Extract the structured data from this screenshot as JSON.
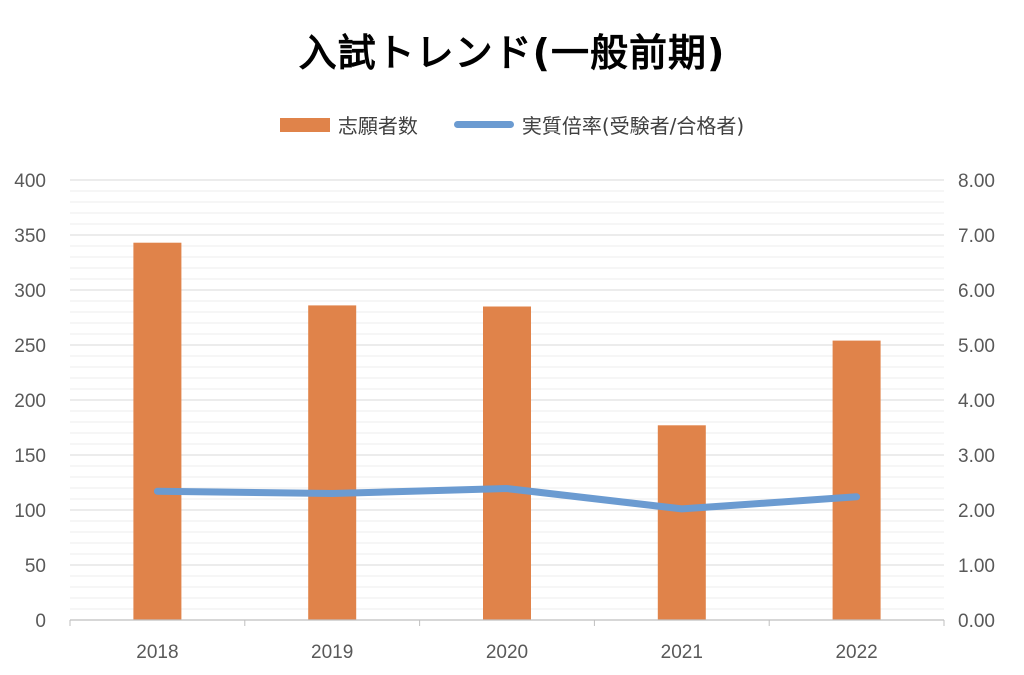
{
  "chart_data": {
    "type": "bar",
    "title": "入試トレンド(一般前期)",
    "categories": [
      "2018",
      "2019",
      "2020",
      "2021",
      "2022"
    ],
    "series": [
      {
        "name": "志願者数",
        "type": "bar",
        "axis": "left",
        "values": [
          343,
          286,
          285,
          177,
          254
        ],
        "color": "#E0834A"
      },
      {
        "name": "実質倍率(受験者/合格者)",
        "type": "line",
        "axis": "right",
        "values": [
          2.34,
          2.3,
          2.39,
          2.02,
          2.24
        ],
        "color": "#6B9BD1"
      }
    ],
    "y_left": {
      "min": 0,
      "max": 400,
      "step": 50,
      "minor_step": 10,
      "tick_labels": [
        "0",
        "50",
        "100",
        "150",
        "200",
        "250",
        "300",
        "350",
        "400"
      ]
    },
    "y_right": {
      "min": 0,
      "max": 8,
      "step": 1,
      "tick_labels": [
        "0.00",
        "1.00",
        "2.00",
        "3.00",
        "4.00",
        "5.00",
        "6.00",
        "7.00",
        "8.00"
      ]
    },
    "grid": true,
    "legend_position": "top"
  }
}
